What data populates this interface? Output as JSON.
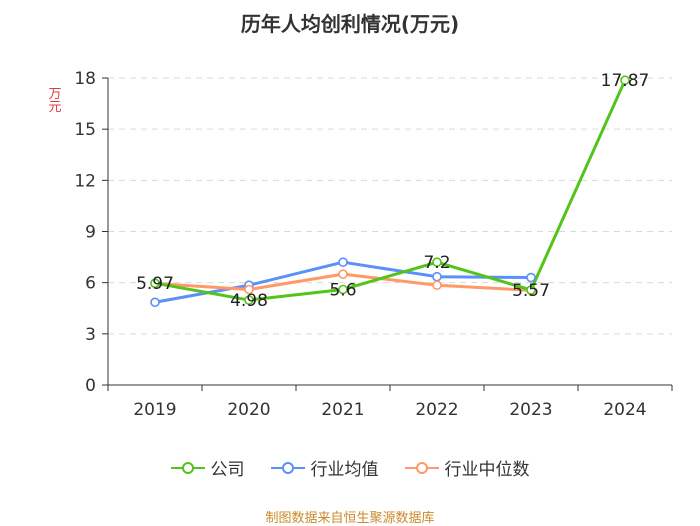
{
  "chart_data": {
    "type": "line",
    "title": "历年人均创利情况(万元)",
    "ylabel": "万元",
    "xlabel": "",
    "categories": [
      "2019",
      "2020",
      "2021",
      "2022",
      "2023",
      "2024"
    ],
    "ylim": [
      0,
      18
    ],
    "yticks": [
      0,
      3,
      6,
      9,
      12,
      15,
      18
    ],
    "series": [
      {
        "name": "公司",
        "color": "#52c41a",
        "values": [
          5.97,
          4.98,
          5.6,
          7.2,
          5.57,
          17.87
        ],
        "labels": [
          "5.97",
          "4.98",
          "5.6",
          "7.2",
          "5.57",
          "17.87"
        ]
      },
      {
        "name": "行业均值",
        "color": "#5b8ff9",
        "values": [
          4.85,
          5.85,
          7.2,
          6.35,
          6.3,
          null
        ]
      },
      {
        "name": "行业中位数",
        "color": "#ff9966",
        "values": [
          5.95,
          5.6,
          6.5,
          5.85,
          5.55,
          null
        ]
      }
    ]
  },
  "source_text": "制图数据来自恒生聚源数据库"
}
